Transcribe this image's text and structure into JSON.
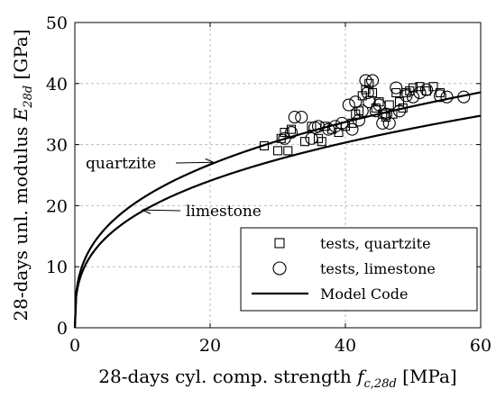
{
  "chart_data": {
    "type": "scatter",
    "x_axis": {
      "label_main": "28-days cyl. comp. strength ",
      "label_symbol": "f",
      "label_sub": "c,28d",
      "label_unit": " [MPa]",
      "xlim": [
        0,
        60
      ],
      "ticks": [
        0,
        20,
        40,
        60
      ]
    },
    "y_axis": {
      "label_main": "28-days unl. modulus ",
      "label_symbol": "E",
      "label_sub": "28d",
      "label_unit": " [GPa]",
      "ylim": [
        0,
        50
      ],
      "ticks": [
        0,
        10,
        20,
        30,
        40,
        50
      ]
    },
    "grid": true,
    "legend": {
      "placement": "bottom-right",
      "entries": [
        {
          "label": "tests, quartzite",
          "marker": "square"
        },
        {
          "label": "tests, limestone",
          "marker": "circle"
        },
        {
          "label": "Model Code",
          "marker": "line"
        }
      ]
    },
    "annotations": [
      {
        "text": "quartzite",
        "arrow_to": [
          20.5,
          27.1
        ]
      },
      {
        "text": "limestone",
        "arrow_to": [
          10.0,
          19.3
        ]
      }
    ],
    "series": [
      {
        "name": "tests, quartzite",
        "marker": "square",
        "points": [
          [
            28,
            29.8
          ],
          [
            30,
            29
          ],
          [
            30.5,
            31
          ],
          [
            31,
            32
          ],
          [
            31.5,
            29
          ],
          [
            32,
            32.5
          ],
          [
            34,
            30.5
          ],
          [
            35,
            33
          ],
          [
            36,
            31
          ],
          [
            36.5,
            30.5
          ],
          [
            37,
            33
          ],
          [
            38,
            32.5
          ],
          [
            39,
            32
          ],
          [
            40,
            33
          ],
          [
            41,
            33.5
          ],
          [
            41.5,
            35
          ],
          [
            42,
            35.5
          ],
          [
            42.5,
            38
          ],
          [
            43,
            39
          ],
          [
            43.5,
            40
          ],
          [
            44,
            38.5
          ],
          [
            44.5,
            36
          ],
          [
            45,
            37
          ],
          [
            45.5,
            35
          ],
          [
            46,
            34.5
          ],
          [
            46.5,
            36.5
          ],
          [
            47,
            35
          ],
          [
            47.5,
            38.5
          ],
          [
            48,
            37
          ],
          [
            48.5,
            36
          ],
          [
            49,
            38.5
          ],
          [
            49.5,
            38.8
          ],
          [
            50,
            39.3
          ],
          [
            51,
            39.5
          ],
          [
            52,
            38.8
          ],
          [
            53,
            39.5
          ],
          [
            54,
            38.5
          ]
        ]
      },
      {
        "name": "tests, limestone",
        "marker": "circle",
        "points": [
          [
            31,
            31
          ],
          [
            32,
            32
          ],
          [
            32.5,
            34.5
          ],
          [
            33.5,
            34.5
          ],
          [
            35,
            31
          ],
          [
            35.5,
            32.8
          ],
          [
            36,
            33
          ],
          [
            37.5,
            32.5
          ],
          [
            38.5,
            33
          ],
          [
            39.5,
            33.5
          ],
          [
            40.5,
            36.5
          ],
          [
            41,
            32.5
          ],
          [
            41.5,
            37
          ],
          [
            42,
            34
          ],
          [
            42.5,
            35.5
          ],
          [
            43,
            40.5
          ],
          [
            43.3,
            38.5
          ],
          [
            43.5,
            37
          ],
          [
            44,
            40.5
          ],
          [
            44.5,
            35.5
          ],
          [
            45,
            36.5
          ],
          [
            45.5,
            33.5
          ],
          [
            46,
            35
          ],
          [
            46.5,
            33.5
          ],
          [
            47.5,
            39.3
          ],
          [
            48,
            35.5
          ],
          [
            49,
            38
          ],
          [
            50,
            37.8
          ],
          [
            51,
            38.5
          ],
          [
            52,
            39
          ],
          [
            54,
            38
          ],
          [
            55,
            37.8
          ],
          [
            57.5,
            37.8
          ]
        ]
      },
      {
        "name": "Model Code",
        "marker": "line",
        "curves": [
          {
            "label": "quartzite",
            "coefficient": 9.85
          },
          {
            "label": "limestone",
            "coefficient": 8.87
          }
        ]
      }
    ]
  }
}
